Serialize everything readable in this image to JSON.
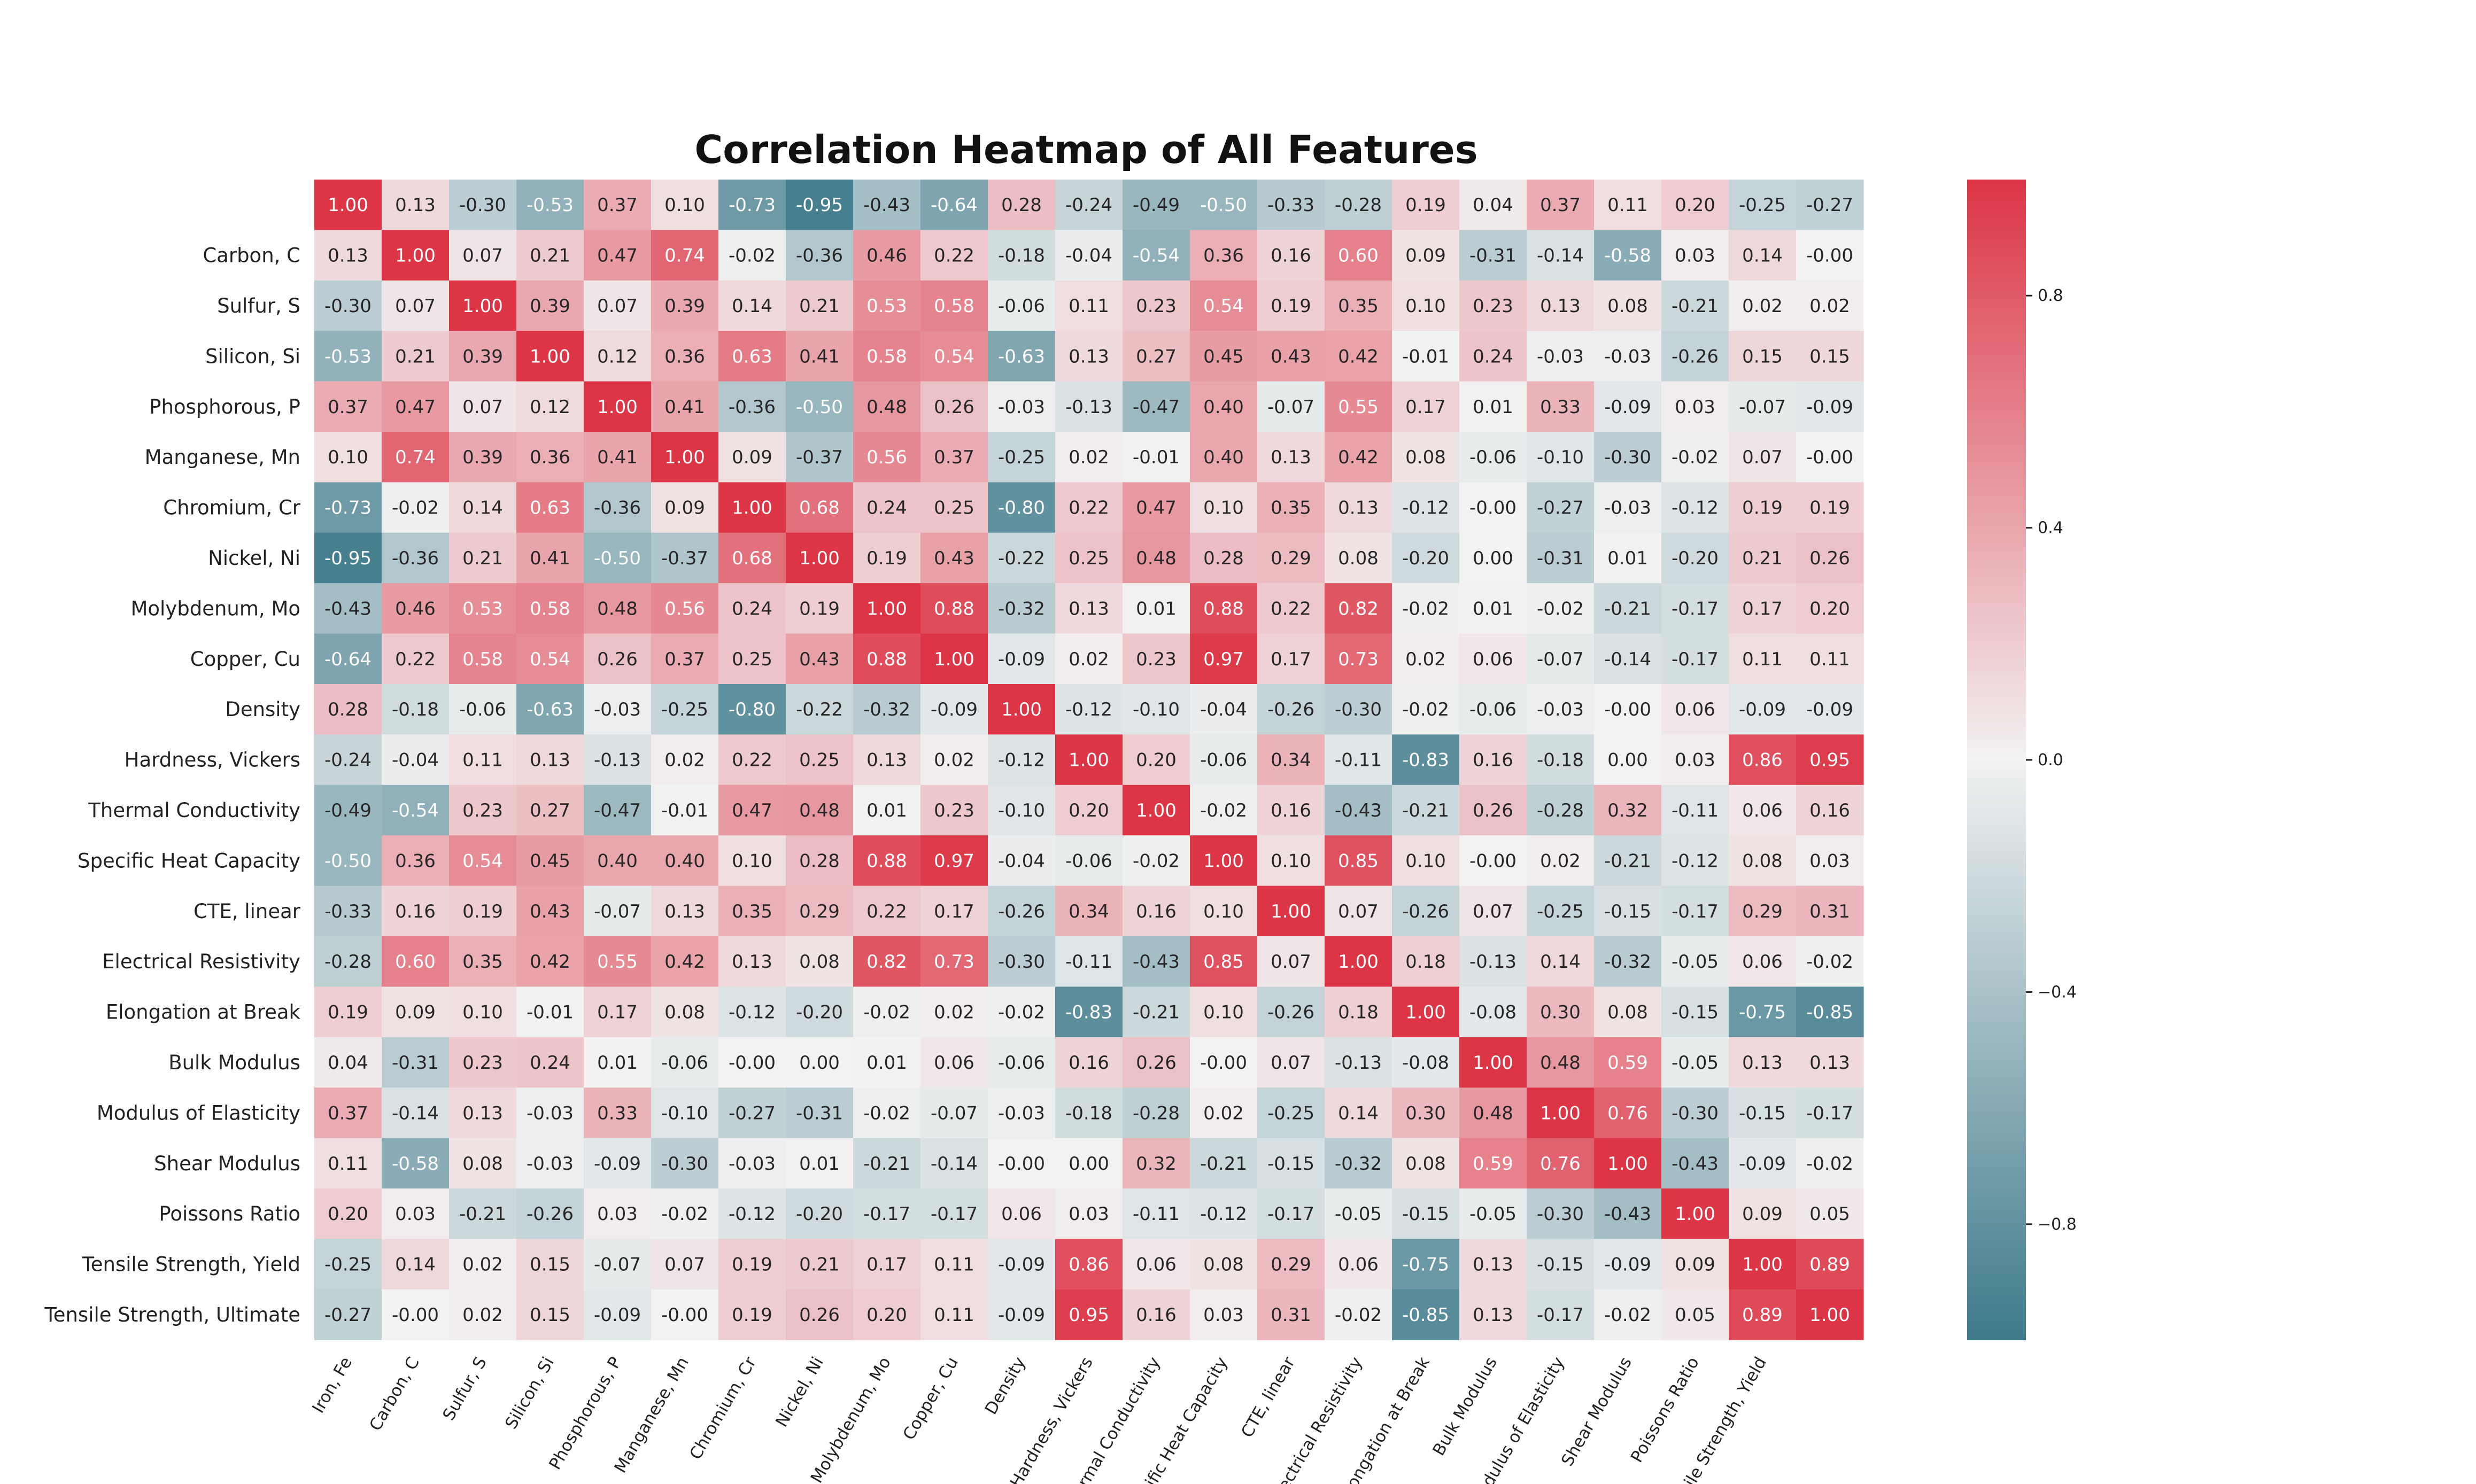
{
  "chart_data": {
    "type": "heatmap",
    "title": "Correlation Heatmap of All Features",
    "row_labels": [
      "",
      "Carbon, C",
      "Sulfur, S",
      "Silicon, Si",
      "Phosphorous, P",
      "Manganese, Mn",
      "Chromium, Cr",
      "Nickel, Ni",
      "Molybdenum, Mo",
      "Copper, Cu",
      "Density",
      "Hardness, Vickers",
      "Thermal Conductivity",
      "Specific Heat Capacity",
      "CTE, linear",
      "Electrical Resistivity",
      "Elongation at Break",
      "Bulk Modulus",
      "Modulus of Elasticity",
      "Shear Modulus",
      "Poissons Ratio",
      "Tensile Strength, Yield",
      "Tensile Strength, Ultimate"
    ],
    "col_labels": [
      "Iron, Fe",
      "Carbon, C",
      "Sulfur, S",
      "Silicon, Si",
      "Phosphorous, P",
      "Manganese, Mn",
      "Chromium, Cr",
      "Nickel, Ni",
      "Molybdenum, Mo",
      "Copper, Cu",
      "Density",
      "Hardness, Vickers",
      "Thermal Conductivity",
      "Specific Heat Capacity",
      "CTE, linear",
      "Electrical Resistivity",
      "Elongation at Break",
      "Bulk Modulus",
      "Modulus of Elasticity",
      "Shear Modulus",
      "Poissons Ratio",
      "Tensile Strength, Yield",
      ""
    ],
    "values": [
      [
        "1.00",
        "0.13",
        "-0.30",
        "-0.53",
        "0.37",
        "0.10",
        "-0.73",
        "-0.95",
        "-0.43",
        "-0.64",
        "0.28",
        "-0.24",
        "-0.49",
        "-0.50",
        "-0.33",
        "-0.28",
        "0.19",
        "0.04",
        "0.37",
        "0.11",
        "0.20",
        "-0.25",
        "-0.27"
      ],
      [
        "0.13",
        "1.00",
        "0.07",
        "0.21",
        "0.47",
        "0.74",
        "-0.02",
        "-0.36",
        "0.46",
        "0.22",
        "-0.18",
        "-0.04",
        "-0.54",
        "0.36",
        "0.16",
        "0.60",
        "0.09",
        "-0.31",
        "-0.14",
        "-0.58",
        "0.03",
        "0.14",
        "-0.00"
      ],
      [
        "-0.30",
        "0.07",
        "1.00",
        "0.39",
        "0.07",
        "0.39",
        "0.14",
        "0.21",
        "0.53",
        "0.58",
        "-0.06",
        "0.11",
        "0.23",
        "0.54",
        "0.19",
        "0.35",
        "0.10",
        "0.23",
        "0.13",
        "0.08",
        "-0.21",
        "0.02",
        "0.02"
      ],
      [
        "-0.53",
        "0.21",
        "0.39",
        "1.00",
        "0.12",
        "0.36",
        "0.63",
        "0.41",
        "0.58",
        "0.54",
        "-0.63",
        "0.13",
        "0.27",
        "0.45",
        "0.43",
        "0.42",
        "-0.01",
        "0.24",
        "-0.03",
        "-0.03",
        "-0.26",
        "0.15",
        "0.15"
      ],
      [
        "0.37",
        "0.47",
        "0.07",
        "0.12",
        "1.00",
        "0.41",
        "-0.36",
        "-0.50",
        "0.48",
        "0.26",
        "-0.03",
        "-0.13",
        "-0.47",
        "0.40",
        "-0.07",
        "0.55",
        "0.17",
        "0.01",
        "0.33",
        "-0.09",
        "0.03",
        "-0.07",
        "-0.09"
      ],
      [
        "0.10",
        "0.74",
        "0.39",
        "0.36",
        "0.41",
        "1.00",
        "0.09",
        "-0.37",
        "0.56",
        "0.37",
        "-0.25",
        "0.02",
        "-0.01",
        "0.40",
        "0.13",
        "0.42",
        "0.08",
        "-0.06",
        "-0.10",
        "-0.30",
        "-0.02",
        "0.07",
        "-0.00"
      ],
      [
        "-0.73",
        "-0.02",
        "0.14",
        "0.63",
        "-0.36",
        "0.09",
        "1.00",
        "0.68",
        "0.24",
        "0.25",
        "-0.80",
        "0.22",
        "0.47",
        "0.10",
        "0.35",
        "0.13",
        "-0.12",
        "-0.00",
        "-0.27",
        "-0.03",
        "-0.12",
        "0.19",
        "0.19"
      ],
      [
        "-0.95",
        "-0.36",
        "0.21",
        "0.41",
        "-0.50",
        "-0.37",
        "0.68",
        "1.00",
        "0.19",
        "0.43",
        "-0.22",
        "0.25",
        "0.48",
        "0.28",
        "0.29",
        "0.08",
        "-0.20",
        "0.00",
        "-0.31",
        "0.01",
        "-0.20",
        "0.21",
        "0.26"
      ],
      [
        "-0.43",
        "0.46",
        "0.53",
        "0.58",
        "0.48",
        "0.56",
        "0.24",
        "0.19",
        "1.00",
        "0.88",
        "-0.32",
        "0.13",
        "0.01",
        "0.88",
        "0.22",
        "0.82",
        "-0.02",
        "0.01",
        "-0.02",
        "-0.21",
        "-0.17",
        "0.17",
        "0.20"
      ],
      [
        "-0.64",
        "0.22",
        "0.58",
        "0.54",
        "0.26",
        "0.37",
        "0.25",
        "0.43",
        "0.88",
        "1.00",
        "-0.09",
        "0.02",
        "0.23",
        "0.97",
        "0.17",
        "0.73",
        "0.02",
        "0.06",
        "-0.07",
        "-0.14",
        "-0.17",
        "0.11",
        "0.11"
      ],
      [
        "0.28",
        "-0.18",
        "-0.06",
        "-0.63",
        "-0.03",
        "-0.25",
        "-0.80",
        "-0.22",
        "-0.32",
        "-0.09",
        "1.00",
        "-0.12",
        "-0.10",
        "-0.04",
        "-0.26",
        "-0.30",
        "-0.02",
        "-0.06",
        "-0.03",
        "-0.00",
        "0.06",
        "-0.09",
        "-0.09"
      ],
      [
        "-0.24",
        "-0.04",
        "0.11",
        "0.13",
        "-0.13",
        "0.02",
        "0.22",
        "0.25",
        "0.13",
        "0.02",
        "-0.12",
        "1.00",
        "0.20",
        "-0.06",
        "0.34",
        "-0.11",
        "-0.83",
        "0.16",
        "-0.18",
        "0.00",
        "0.03",
        "0.86",
        "0.95"
      ],
      [
        "-0.49",
        "-0.54",
        "0.23",
        "0.27",
        "-0.47",
        "-0.01",
        "0.47",
        "0.48",
        "0.01",
        "0.23",
        "-0.10",
        "0.20",
        "1.00",
        "-0.02",
        "0.16",
        "-0.43",
        "-0.21",
        "0.26",
        "-0.28",
        "0.32",
        "-0.11",
        "0.06",
        "0.16"
      ],
      [
        "-0.50",
        "0.36",
        "0.54",
        "0.45",
        "0.40",
        "0.40",
        "0.10",
        "0.28",
        "0.88",
        "0.97",
        "-0.04",
        "-0.06",
        "-0.02",
        "1.00",
        "0.10",
        "0.85",
        "0.10",
        "-0.00",
        "0.02",
        "-0.21",
        "-0.12",
        "0.08",
        "0.03"
      ],
      [
        "-0.33",
        "0.16",
        "0.19",
        "0.43",
        "-0.07",
        "0.13",
        "0.35",
        "0.29",
        "0.22",
        "0.17",
        "-0.26",
        "0.34",
        "0.16",
        "0.10",
        "1.00",
        "0.07",
        "-0.26",
        "0.07",
        "-0.25",
        "-0.15",
        "-0.17",
        "0.29",
        "0.31"
      ],
      [
        "-0.28",
        "0.60",
        "0.35",
        "0.42",
        "0.55",
        "0.42",
        "0.13",
        "0.08",
        "0.82",
        "0.73",
        "-0.30",
        "-0.11",
        "-0.43",
        "0.85",
        "0.07",
        "1.00",
        "0.18",
        "-0.13",
        "0.14",
        "-0.32",
        "-0.05",
        "0.06",
        "-0.02"
      ],
      [
        "0.19",
        "0.09",
        "0.10",
        "-0.01",
        "0.17",
        "0.08",
        "-0.12",
        "-0.20",
        "-0.02",
        "0.02",
        "-0.02",
        "-0.83",
        "-0.21",
        "0.10",
        "-0.26",
        "0.18",
        "1.00",
        "-0.08",
        "0.30",
        "0.08",
        "-0.15",
        "-0.75",
        "-0.85"
      ],
      [
        "0.04",
        "-0.31",
        "0.23",
        "0.24",
        "0.01",
        "-0.06",
        "-0.00",
        "0.00",
        "0.01",
        "0.06",
        "-0.06",
        "0.16",
        "0.26",
        "-0.00",
        "0.07",
        "-0.13",
        "-0.08",
        "1.00",
        "0.48",
        "0.59",
        "-0.05",
        "0.13",
        "0.13"
      ],
      [
        "0.37",
        "-0.14",
        "0.13",
        "-0.03",
        "0.33",
        "-0.10",
        "-0.27",
        "-0.31",
        "-0.02",
        "-0.07",
        "-0.03",
        "-0.18",
        "-0.28",
        "0.02",
        "-0.25",
        "0.14",
        "0.30",
        "0.48",
        "1.00",
        "0.76",
        "-0.30",
        "-0.15",
        "-0.17"
      ],
      [
        "0.11",
        "-0.58",
        "0.08",
        "-0.03",
        "-0.09",
        "-0.30",
        "-0.03",
        "0.01",
        "-0.21",
        "-0.14",
        "-0.00",
        "0.00",
        "0.32",
        "-0.21",
        "-0.15",
        "-0.32",
        "0.08",
        "0.59",
        "0.76",
        "1.00",
        "-0.43",
        "-0.09",
        "-0.02"
      ],
      [
        "0.20",
        "0.03",
        "-0.21",
        "-0.26",
        "0.03",
        "-0.02",
        "-0.12",
        "-0.20",
        "-0.17",
        "-0.17",
        "0.06",
        "0.03",
        "-0.11",
        "-0.12",
        "-0.17",
        "-0.05",
        "-0.15",
        "-0.05",
        "-0.30",
        "-0.43",
        "1.00",
        "0.09",
        "0.05"
      ],
      [
        "-0.25",
        "0.14",
        "0.02",
        "0.15",
        "-0.07",
        "0.07",
        "0.19",
        "0.21",
        "0.17",
        "0.11",
        "-0.09",
        "0.86",
        "0.06",
        "0.08",
        "0.29",
        "0.06",
        "-0.75",
        "0.13",
        "-0.15",
        "-0.09",
        "0.09",
        "1.00",
        "0.89"
      ],
      [
        "-0.27",
        "-0.00",
        "0.02",
        "0.15",
        "-0.09",
        "-0.00",
        "0.19",
        "0.26",
        "0.20",
        "0.11",
        "-0.09",
        "0.95",
        "0.16",
        "0.03",
        "0.31",
        "-0.02",
        "-0.85",
        "0.13",
        "-0.17",
        "-0.02",
        "0.05",
        "0.89",
        "1.00"
      ]
    ],
    "vmin": -1.0,
    "vmax": 1.0,
    "colormap": {
      "negative": "#3d7a8a",
      "center": "#f2f2f2",
      "positive": "#dc3545"
    },
    "colorbar": {
      "ticks": [
        "0.8",
        "0.4",
        "0.0",
        "−0.4",
        "−0.8"
      ],
      "tick_values": [
        0.8,
        0.4,
        0.0,
        -0.4,
        -0.8
      ],
      "position": "right"
    },
    "grid": false,
    "legend": "none"
  }
}
